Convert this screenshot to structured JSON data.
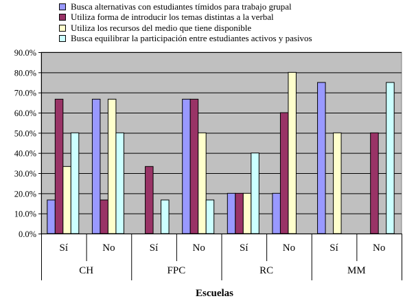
{
  "chart_data": {
    "type": "bar",
    "title": "",
    "xlabel": "Escuelas",
    "ylabel": "",
    "ylim": [
      0,
      0.9
    ],
    "yticks": [
      "0.0%",
      "10.0%",
      "20.0%",
      "30.0%",
      "40.0%",
      "50.0%",
      "60.0%",
      "70.0%",
      "80.0%",
      "90.0%"
    ],
    "groups": [
      "CH",
      "FPC",
      "RC",
      "MM"
    ],
    "subcategories": [
      "Sí",
      "No"
    ],
    "categories": [
      "CH Sí",
      "CH No",
      "FPC Sí",
      "FPC No",
      "RC Sí",
      "RC No",
      "MM Sí",
      "MM No"
    ],
    "legend_position": "top",
    "grid": "horizontal",
    "series": [
      {
        "name": "Busca alternativas con estudiantes tímidos para trabajo grupal",
        "color": "#9999ff",
        "values": [
          0.167,
          0.667,
          0,
          0.667,
          0.2,
          0.2,
          0.75,
          0
        ]
      },
      {
        "name": "Utiliza forma de introducir los temas distintas a la verbal",
        "color": "#993366",
        "values": [
          0.667,
          0.167,
          0.333,
          0.667,
          0.2,
          0.6,
          0,
          0.5
        ]
      },
      {
        "name": "Utiliza los recursos del medio que tiene disponible",
        "color": "#ffffcc",
        "values": [
          0.333,
          0.667,
          0,
          0.5,
          0.2,
          0.8,
          0.5,
          0
        ]
      },
      {
        "name": "Busca equilibrar la participación entre estudiantes activos y pasivos",
        "color": "#ccffff",
        "values": [
          0.5,
          0.5,
          0.167,
          0.167,
          0.4,
          0,
          0,
          0.75
        ]
      }
    ]
  }
}
